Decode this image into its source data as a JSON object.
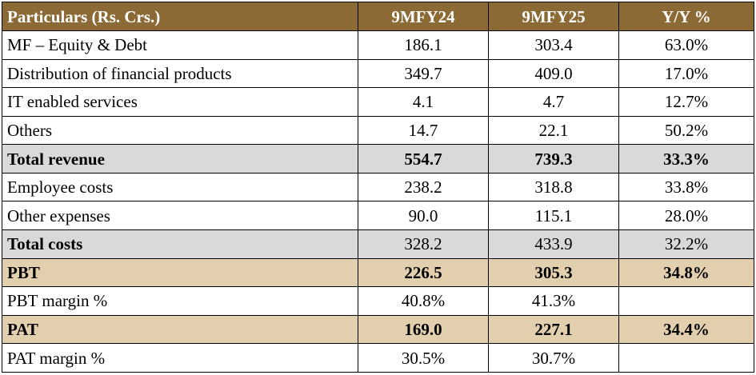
{
  "table": {
    "headers": [
      "Particulars (Rs. Crs.)",
      "9MFY24",
      "9MFY25",
      "Y/Y %"
    ],
    "rows": [
      {
        "label": "MF – Equity & Debt",
        "v1": "186.1",
        "v2": "303.4",
        "v3": "63.0%"
      },
      {
        "label": "Distribution of financial products",
        "v1": "349.7",
        "v2": "409.0",
        "v3": "17.0%"
      },
      {
        "label": "IT enabled services",
        "v1": "4.1",
        "v2": "4.7",
        "v3": "12.7%"
      },
      {
        "label": "Others",
        "v1": "14.7",
        "v2": "22.1",
        "v3": "50.2%"
      },
      {
        "label": "Total revenue",
        "v1": "554.7",
        "v2": "739.3",
        "v3": "33.3%"
      },
      {
        "label": "Employee costs",
        "v1": "238.2",
        "v2": "318.8",
        "v3": "33.8%"
      },
      {
        "label": "Other expenses",
        "v1": "90.0",
        "v2": "115.1",
        "v3": "28.0%"
      },
      {
        "label": "Total costs",
        "v1": "328.2",
        "v2": "433.9",
        "v3": "32.2%"
      },
      {
        "label": "PBT",
        "v1": "226.5",
        "v2": "305.3",
        "v3": "34.8%"
      },
      {
        "label": "PBT margin %",
        "v1": "40.8%",
        "v2": "41.3%",
        "v3": ""
      },
      {
        "label": "PAT",
        "v1": "169.0",
        "v2": "227.1",
        "v3": "34.4%"
      },
      {
        "label": "PAT margin %",
        "v1": "30.5%",
        "v2": "30.7%",
        "v3": ""
      }
    ]
  },
  "colors": {
    "header_bg": "#8c6a35",
    "subtotal_bg": "#d9d9d9",
    "highlight_bg": "#e2cfae"
  }
}
